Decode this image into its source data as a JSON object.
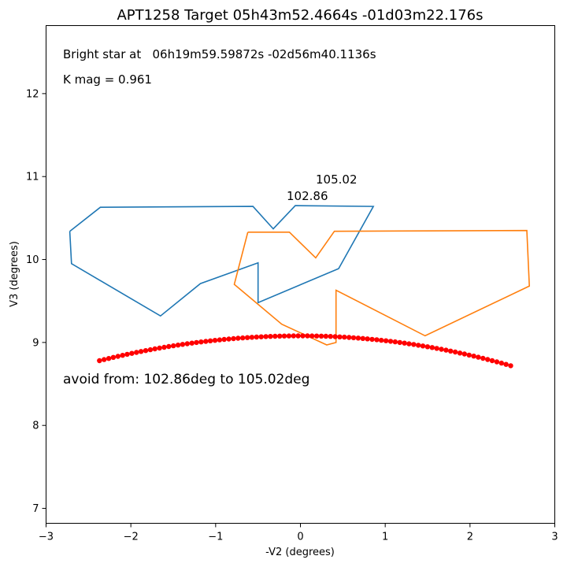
{
  "chart_data": {
    "type": "scatter",
    "title": "APT1258 Target 05h43m52.4664s -01d03m22.176s",
    "xlabel": "-V2 (degrees)",
    "ylabel": "V3 (degrees)",
    "xlim": [
      -3,
      3
    ],
    "ylim": [
      6.82,
      12.82
    ],
    "xticks": [
      -3,
      -2,
      -1,
      0,
      1,
      2,
      3
    ],
    "yticks": [
      7,
      8,
      9,
      10,
      11,
      12
    ],
    "grid": false,
    "annotations": {
      "bright_star": "Bright star at   06h19m59.59872s -02d56m40.1136s",
      "kmag": "K mag = 0.961",
      "avoid": "avoid from: 102.86deg to 105.02deg",
      "angle_low": "102.86",
      "angle_high": "105.02"
    },
    "series": [
      {
        "color": "#1f77b4",
        "kind": "line",
        "x": [
          -2.72,
          -2.36,
          -0.56,
          -0.32,
          -0.06,
          0.86,
          0.45,
          -0.5,
          -0.5,
          -1.18,
          -1.65,
          -2.7,
          -2.72
        ],
        "y": [
          10.34,
          10.63,
          10.64,
          10.37,
          10.65,
          10.64,
          9.89,
          9.48,
          9.96,
          9.71,
          9.32,
          9.95,
          10.34
        ]
      },
      {
        "color": "#ff7f0e",
        "kind": "line",
        "x": [
          -0.62,
          -0.13,
          0.18,
          0.4,
          2.67,
          2.7,
          1.47,
          0.42,
          0.42,
          0.31,
          -0.22,
          -0.78,
          -0.62
        ],
        "y": [
          10.33,
          10.33,
          10.02,
          10.34,
          10.35,
          9.68,
          9.08,
          9.63,
          9.0,
          8.97,
          9.22,
          9.7,
          10.33
        ]
      },
      {
        "color": "#ff0000",
        "kind": "points",
        "x_start": -2.37,
        "x_end": 2.48,
        "n_points": 90,
        "y_left": 8.78,
        "y_peak": 9.08,
        "x_peak": 0.0,
        "y_right": 8.72
      }
    ]
  }
}
